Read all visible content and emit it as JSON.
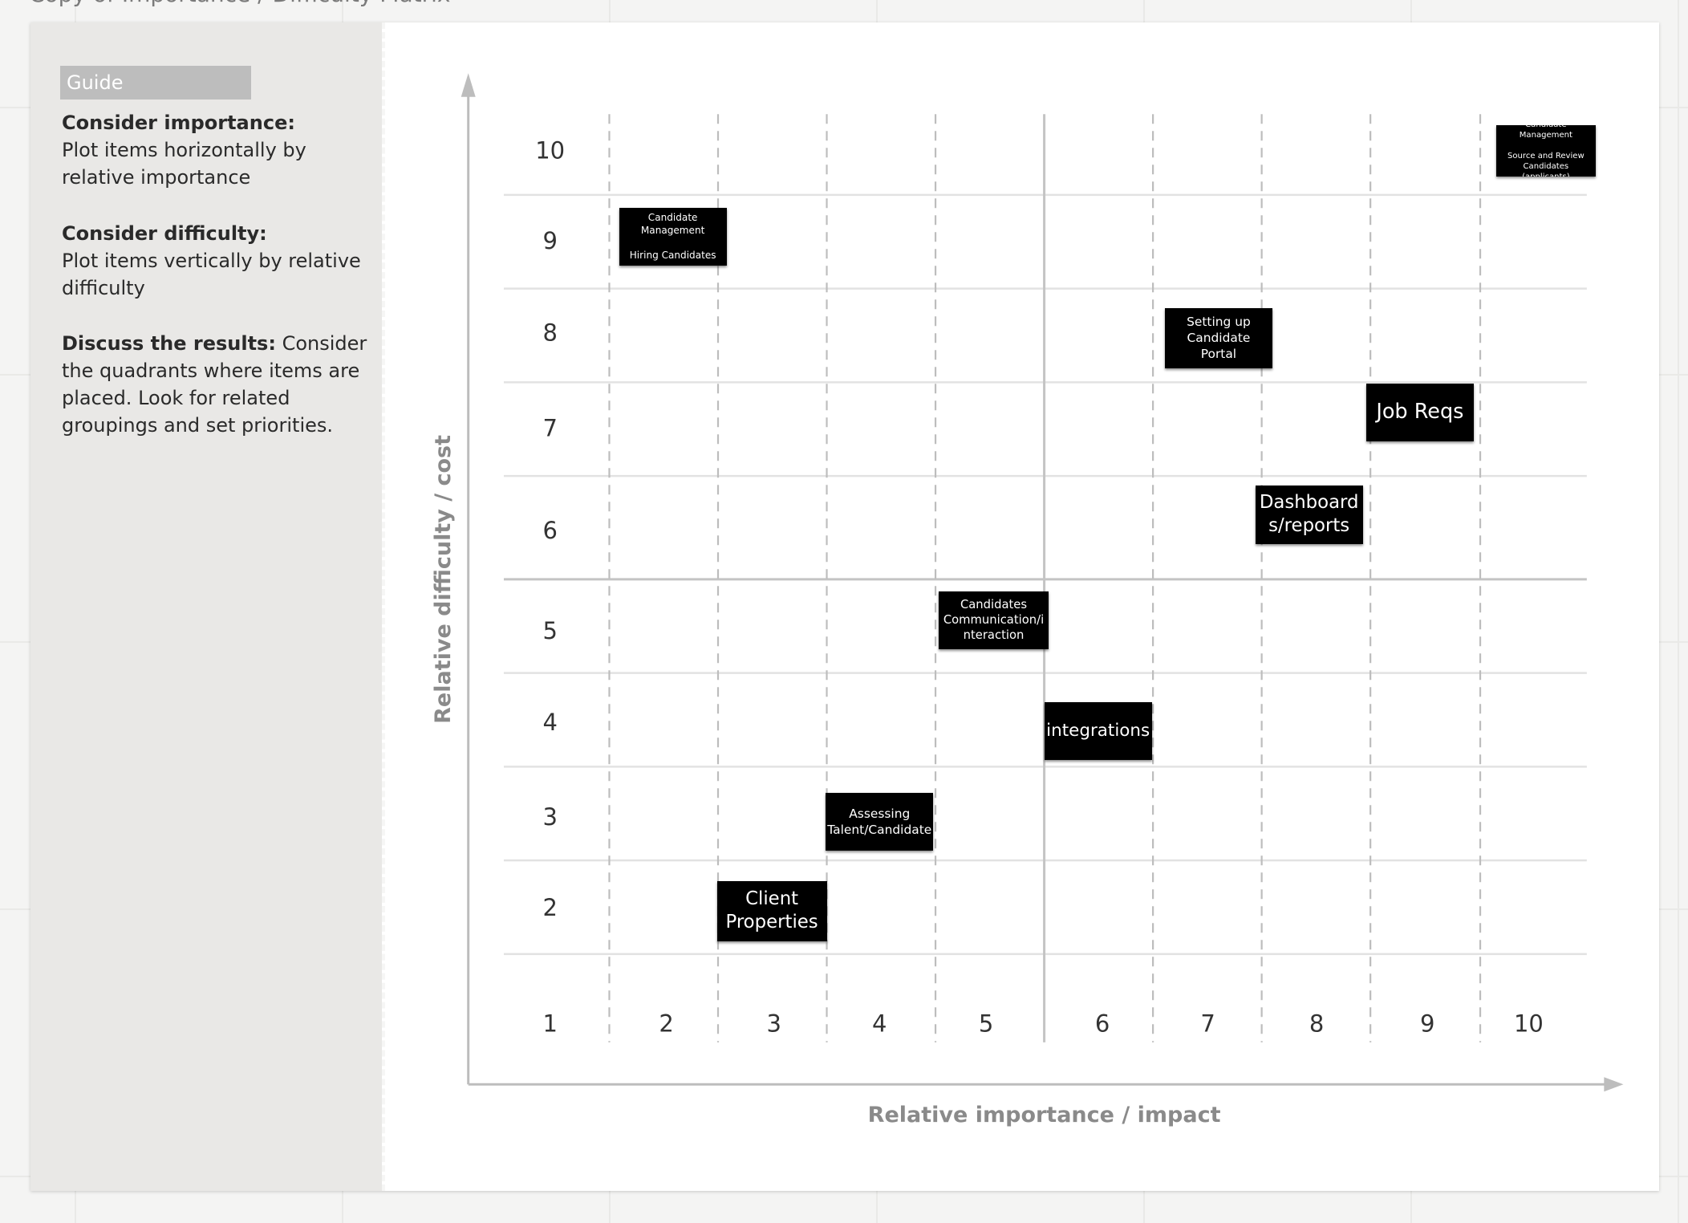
{
  "board": {
    "title": "Copy of Importance / Difficulty Matrix"
  },
  "guide": {
    "label": "Guide",
    "importance_head": "Consider importance:",
    "importance_text": "Plot items horizontally by relative importance",
    "difficulty_head": "Consider difficulty:",
    "difficulty_text": "Plot items vertically by relative difficulty",
    "discuss_head": "Discuss the results:",
    "discuss_text": "Consider the quadrants where items are placed. Look for related groupings and set priorities."
  },
  "chart_data": {
    "type": "scatter",
    "xlabel": "Relative importance / impact",
    "ylabel": "Relative difficulty / cost",
    "x_ticks": [
      "1",
      "2",
      "3",
      "4",
      "5",
      "6",
      "7",
      "8",
      "9",
      "10"
    ],
    "y_ticks": [
      "1",
      "2",
      "3",
      "4",
      "5",
      "6",
      "7",
      "8",
      "9",
      "10"
    ],
    "xlim": [
      1,
      10
    ],
    "ylim": [
      1,
      10
    ],
    "quadrant_divider": {
      "x": 5.5,
      "y": 5.5
    },
    "grid": true,
    "points": [
      {
        "name": "note-candidate-management",
        "x": 2,
        "y": 9,
        "label": "Candidate\nManagement\n\nHiring Candidates"
      },
      {
        "name": "note-candidate-management-sourcing",
        "x": 10,
        "y": 10,
        "label": "Candidate Management\n\nSource and Review\nCandidates (applicants)"
      },
      {
        "name": "note-setting-up-portal",
        "x": 7,
        "y": 8,
        "label": "Setting up\nCandidate Portal"
      },
      {
        "name": "note-job-reqs",
        "x": 9,
        "y": 7,
        "label": "Job Reqs"
      },
      {
        "name": "note-dashboards",
        "x": 8,
        "y": 6,
        "label": "Dashboard\ns/reports"
      },
      {
        "name": "note-candidates-communication",
        "x": 5,
        "y": 5,
        "label": "Candidates\nCommunication/i\nnteraction"
      },
      {
        "name": "note-integrations",
        "x": 6,
        "y": 4,
        "label": "integrations"
      },
      {
        "name": "note-assessing-talent",
        "x": 4,
        "y": 3,
        "label": "Assessing\nTalent/Candidate"
      },
      {
        "name": "note-client-properties",
        "x": 3,
        "y": 2,
        "label": "Client\nProperties"
      }
    ]
  }
}
